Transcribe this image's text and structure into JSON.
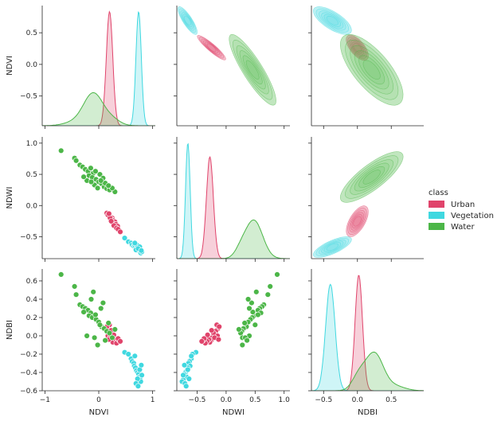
{
  "chart_data": {
    "type": "scatter",
    "chart_kind": "pairplot",
    "variables": [
      "NDVI",
      "NDWI",
      "NDBI"
    ],
    "hue_title": "class",
    "diagonal": "kde",
    "upper": "kde-contour",
    "lower": "scatter",
    "classes": [
      {
        "name": "Urban",
        "color": "#e0446b"
      },
      {
        "name": "Vegetation",
        "color": "#40d8e0"
      },
      {
        "name": "Water",
        "color": "#4cb648"
      }
    ],
    "axes": {
      "NDVI": {
        "range": [
          -1.05,
          1.05
        ],
        "ticks": [
          -1,
          0,
          1
        ],
        "tick_labels": [
          "−1",
          "0",
          "1"
        ],
        "row_ticks": [
          -0.5,
          0.0,
          0.5
        ],
        "row_tick_labels": [
          "−0.5",
          "0.0",
          "0.5"
        ],
        "row_range": [
          -0.97,
          0.93
        ]
      },
      "NDWI": {
        "range": [
          -0.85,
          1.1
        ],
        "ticks": [
          -0.5,
          0.0,
          0.5,
          1.0
        ],
        "tick_labels": [
          "−0.5",
          "0.0",
          "0.5",
          "1.0"
        ],
        "row_ticks": [
          -0.5,
          0.0,
          0.5,
          1.0
        ],
        "row_tick_labels": [
          "−0.5",
          "0.0",
          "0.5",
          "1.0"
        ],
        "row_range": [
          -0.85,
          1.1
        ]
      },
      "NDBI": {
        "range": [
          -0.68,
          0.98
        ],
        "ticks": [
          -0.5,
          0.0,
          0.5
        ],
        "tick_labels": [
          "−0.5",
          "0.0",
          "0.5"
        ],
        "row_ticks": [
          -0.6,
          -0.4,
          -0.2,
          0.0,
          0.2,
          0.4,
          0.6
        ],
        "row_tick_labels": [
          "−0.6",
          "−0.4",
          "−0.2",
          "0.0",
          "0.2",
          "0.4",
          "0.6"
        ],
        "row_range": [
          -0.6,
          0.73
        ]
      }
    },
    "points": {
      "Urban": [
        [
          0.18,
          -0.14,
          0.08
        ],
        [
          0.2,
          -0.16,
          0.12
        ],
        [
          0.15,
          -0.12,
          0.1
        ],
        [
          0.22,
          -0.18,
          0.05
        ],
        [
          0.25,
          -0.2,
          0.02
        ],
        [
          0.17,
          -0.15,
          0.0
        ],
        [
          0.24,
          -0.22,
          0.03
        ],
        [
          0.27,
          -0.24,
          -0.02
        ],
        [
          0.3,
          -0.26,
          -0.05
        ],
        [
          0.26,
          -0.28,
          -0.07
        ],
        [
          0.32,
          -0.3,
          -0.04
        ],
        [
          0.35,
          -0.33,
          -0.06
        ],
        [
          0.28,
          -0.32,
          0.01
        ],
        [
          0.33,
          -0.36,
          -0.08
        ],
        [
          0.38,
          -0.4,
          -0.05
        ],
        [
          0.21,
          -0.2,
          -0.02
        ],
        [
          0.23,
          -0.25,
          0.06
        ],
        [
          0.36,
          -0.38,
          -0.03
        ],
        [
          0.4,
          -0.42,
          -0.06
        ],
        [
          0.19,
          -0.13,
          -0.04
        ]
      ],
      "Vegetation": [
        [
          0.48,
          -0.52,
          -0.18
        ],
        [
          0.55,
          -0.58,
          -0.2
        ],
        [
          0.6,
          -0.6,
          -0.25
        ],
        [
          0.62,
          -0.63,
          -0.28
        ],
        [
          0.65,
          -0.65,
          -0.3
        ],
        [
          0.66,
          -0.62,
          -0.33
        ],
        [
          0.68,
          -0.66,
          -0.35
        ],
        [
          0.7,
          -0.68,
          -0.38
        ],
        [
          0.72,
          -0.7,
          -0.4
        ],
        [
          0.74,
          -0.72,
          -0.42
        ],
        [
          0.75,
          -0.68,
          -0.45
        ],
        [
          0.77,
          -0.74,
          -0.48
        ],
        [
          0.78,
          -0.76,
          -0.5
        ],
        [
          0.8,
          -0.74,
          -0.43
        ],
        [
          0.72,
          -0.64,
          -0.47
        ],
        [
          0.69,
          -0.71,
          -0.52
        ],
        [
          0.76,
          -0.66,
          -0.37
        ],
        [
          0.73,
          -0.69,
          -0.55
        ],
        [
          0.79,
          -0.72,
          -0.32
        ],
        [
          0.67,
          -0.6,
          -0.22
        ]
      ],
      "Water": [
        [
          -0.7,
          0.88,
          0.67
        ],
        [
          -0.45,
          0.76,
          0.54
        ],
        [
          -0.42,
          0.72,
          0.45
        ],
        [
          -0.35,
          0.65,
          0.34
        ],
        [
          -0.3,
          0.62,
          0.32
        ],
        [
          -0.25,
          0.58,
          0.3
        ],
        [
          -0.2,
          0.55,
          0.28
        ],
        [
          -0.15,
          0.6,
          0.25
        ],
        [
          -0.1,
          0.52,
          0.48
        ],
        [
          -0.18,
          0.48,
          0.22
        ],
        [
          -0.12,
          0.45,
          0.2
        ],
        [
          -0.05,
          0.42,
          0.18
        ],
        [
          0.0,
          0.38,
          0.15
        ],
        [
          0.05,
          0.35,
          0.1
        ],
        [
          0.1,
          0.3,
          0.08
        ],
        [
          0.15,
          0.27,
          0.05
        ],
        [
          0.2,
          0.25,
          0.03
        ],
        [
          0.3,
          0.22,
          0.07
        ],
        [
          0.25,
          0.28,
          -0.02
        ],
        [
          -0.22,
          0.4,
          0.0
        ],
        [
          -0.08,
          0.33,
          -0.02
        ],
        [
          0.02,
          0.5,
          0.12
        ],
        [
          0.08,
          0.44,
          0.36
        ],
        [
          -0.28,
          0.46,
          0.26
        ],
        [
          0.12,
          0.36,
          -0.05
        ],
        [
          -0.02,
          0.28,
          -0.1
        ],
        [
          0.18,
          0.32,
          0.14
        ],
        [
          -0.14,
          0.38,
          0.4
        ],
        [
          0.04,
          0.4,
          0.3
        ],
        [
          -0.06,
          0.55,
          0.23
        ]
      ]
    },
    "diag_kde": {
      "NDVI": {
        "Urban": {
          "peaks": [
            [
              0.2,
              0.06,
              1.0
            ]
          ]
        },
        "Vegetation": {
          "peaks": [
            [
              0.74,
              0.05,
              1.0
            ]
          ]
        },
        "Water": {
          "peaks": [
            [
              -0.1,
              0.18,
              0.28
            ],
            [
              -0.45,
              0.2,
              0.03
            ],
            [
              0.25,
              0.15,
              0.05
            ]
          ]
        }
      },
      "NDWI": {
        "Urban": {
          "peaks": [
            [
              -0.28,
              0.06,
              0.88
            ]
          ]
        },
        "Vegetation": {
          "peaks": [
            [
              -0.66,
              0.04,
              1.0
            ]
          ]
        },
        "Water": {
          "peaks": [
            [
              0.48,
              0.15,
              0.33
            ],
            [
              0.25,
              0.1,
              0.06
            ]
          ]
        }
      },
      "NDBI": {
        "Urban": {
          "peaks": [
            [
              0.02,
              0.055,
              1.0
            ]
          ]
        },
        "Vegetation": {
          "peaks": [
            [
              -0.4,
              0.07,
              0.92
            ]
          ]
        },
        "Water": {
          "peaks": [
            [
              0.25,
              0.13,
              0.32
            ],
            [
              0.02,
              0.1,
              0.12
            ],
            [
              0.55,
              0.15,
              0.04
            ]
          ]
        }
      }
    }
  }
}
